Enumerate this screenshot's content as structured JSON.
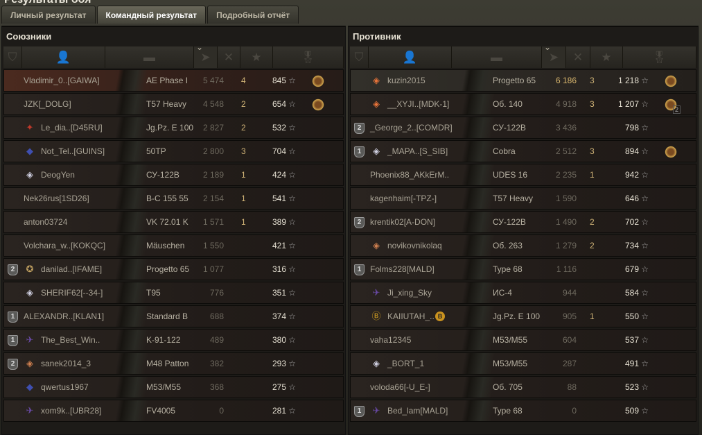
{
  "window": {
    "title": "Результаты боя"
  },
  "tabs": [
    {
      "label": "Личный результат",
      "active": false
    },
    {
      "label": "Командный результат",
      "active": true
    },
    {
      "label": "Подробный отчёт",
      "active": false
    }
  ],
  "columns": {
    "icons": [
      "platoon-icon",
      "player-icon",
      "tank-icon",
      "damage-icon",
      "kills-icon",
      "xp-star-icon",
      "medal-icon"
    ],
    "sorted": "damage"
  },
  "colors": {
    "player_row": "#4b2a1f",
    "gold_number": "#d0b477",
    "panel": "#1d1b18"
  },
  "allies": {
    "title": "Союзники",
    "rows": [
      {
        "name": "Vladimir_0..[GAIWA]",
        "badge": "",
        "platoon": "",
        "tank": "AE Phase I",
        "damage": "5 474",
        "kills": "4",
        "xp": "845",
        "medal": true,
        "me": true
      },
      {
        "name": "JZK[_DOLG]",
        "badge": "",
        "platoon": "",
        "tank": "T57 Heavy",
        "damage": "4 548",
        "kills": "2",
        "xp": "654",
        "medal": true
      },
      {
        "name": "Le_dia..[D45RU]",
        "badge": "ribbon-red",
        "platoon": "",
        "tank": "Jg.Pz. E 100",
        "damage": "2 827",
        "kills": "2",
        "xp": "532"
      },
      {
        "name": "Not_Tel..[GUINS]",
        "badge": "ribbon-blue",
        "platoon": "",
        "tank": "50TP",
        "damage": "2 800",
        "kills": "3",
        "xp": "704"
      },
      {
        "name": "DeogYen",
        "badge": "diamond-silver",
        "platoon": "",
        "tank": "СУ-122В",
        "damage": "2 189",
        "kills": "1",
        "xp": "424"
      },
      {
        "name": "Nek26rus[1SD26]",
        "badge": "",
        "platoon": "",
        "tank": "B-C 155 55",
        "damage": "2 154",
        "kills": "1",
        "xp": "541"
      },
      {
        "name": "anton03724",
        "badge": "",
        "platoon": "",
        "tank": "VK 72.01 K",
        "damage": "1 571",
        "kills": "1",
        "xp": "389"
      },
      {
        "name": "Volchara_w..[KOKQC]",
        "badge": "",
        "platoon": "",
        "tank": "Mäuschen",
        "damage": "1 550",
        "kills": "",
        "xp": "421"
      },
      {
        "name": "danilad..[IFAME]",
        "badge": "medal-round",
        "platoon": "2",
        "tank": "Progetto 65",
        "damage": "1 077",
        "kills": "",
        "xp": "316"
      },
      {
        "name": "SHERIF62[--34-]",
        "badge": "diamond-silver",
        "platoon": "",
        "tank": "T95",
        "damage": "776",
        "kills": "",
        "xp": "351"
      },
      {
        "name": "ALEXANDR..[KLAN1]",
        "badge": "",
        "platoon": "1",
        "tank": "Standard B",
        "damage": "688",
        "kills": "",
        "xp": "374"
      },
      {
        "name": "The_Best_Win..",
        "badge": "ribbon-purple",
        "platoon": "1",
        "tank": "K-91-122",
        "damage": "489",
        "kills": "",
        "xp": "380"
      },
      {
        "name": "sanek2014_3",
        "badge": "diamond-bronze",
        "platoon": "2",
        "tank": "M48 Patton",
        "damage": "382",
        "kills": "",
        "xp": "293"
      },
      {
        "name": "qwertus1967",
        "badge": "ribbon-blue",
        "platoon": "",
        "tank": "M53/M55",
        "damage": "368",
        "kills": "",
        "xp": "275"
      },
      {
        "name": "xom9k..[UBR28]",
        "badge": "ribbon-purple",
        "platoon": "",
        "tank": "FV4005",
        "damage": "0",
        "kills": "",
        "xp": "281"
      }
    ]
  },
  "enemies": {
    "title": "Противник",
    "rows": [
      {
        "name": "kuzin2015",
        "badge": "diamond-orange",
        "platoon": "",
        "tank": "Progetto 65",
        "damage": "6 186",
        "kills": "3",
        "xp": "1 218",
        "medal": true,
        "gold": true,
        "hl": true
      },
      {
        "name": "__XYJI..[MDK-1]",
        "badge": "diamond-orange",
        "platoon": "",
        "tank": "Об. 140",
        "damage": "4 918",
        "kills": "3",
        "xp": "1 207",
        "medal": true,
        "medal_count": "2"
      },
      {
        "name": "_George_2..[COMDR]",
        "badge": "",
        "platoon": "2",
        "tank": "СУ-122В",
        "damage": "3 436",
        "kills": "",
        "xp": "798"
      },
      {
        "name": "_MAPA..[S_SIB]",
        "badge": "diamond-silver",
        "platoon": "1",
        "tank": "Cobra",
        "damage": "2 512",
        "kills": "3",
        "xp": "894",
        "medal": true
      },
      {
        "name": "Phoenix88_AKkErM..",
        "badge": "",
        "platoon": "",
        "tank": "UDES 16",
        "damage": "2 235",
        "kills": "1",
        "xp": "942"
      },
      {
        "name": "kagenhaim[-TPZ-]",
        "badge": "",
        "platoon": "",
        "tank": "T57 Heavy",
        "damage": "1 590",
        "kills": "",
        "xp": "646"
      },
      {
        "name": "krentik02[A-DON]",
        "badge": "",
        "platoon": "2",
        "tank": "СУ-122В",
        "damage": "1 490",
        "kills": "2",
        "xp": "702"
      },
      {
        "name": "novikovnikolaq",
        "badge": "diamond-bronze",
        "platoon": "",
        "tank": "Об. 263",
        "damage": "1 279",
        "kills": "2",
        "xp": "734"
      },
      {
        "name": "Folms228[MALD]",
        "badge": "",
        "platoon": "1",
        "tank": "Type 68",
        "damage": "1 116",
        "kills": "",
        "xp": "679"
      },
      {
        "name": "Ji_xing_Sky",
        "badge": "ribbon-purple",
        "platoon": "",
        "tank": "ИС-4",
        "damage": "944",
        "kills": "",
        "xp": "584"
      },
      {
        "name": "KAIIUTAH_..",
        "badge": "b-badge",
        "platoon": "",
        "tank": "Jg.Pz. E 100",
        "damage": "905",
        "kills": "1",
        "xp": "550",
        "extra_badge": "B"
      },
      {
        "name": "vaha12345",
        "badge": "",
        "platoon": "",
        "tank": "M53/M55",
        "damage": "604",
        "kills": "",
        "xp": "537"
      },
      {
        "name": "_BORT_1",
        "badge": "diamond-silver",
        "platoon": "",
        "tank": "M53/M55",
        "damage": "287",
        "kills": "",
        "xp": "491"
      },
      {
        "name": "voloda66[-U_E-]",
        "badge": "",
        "platoon": "",
        "tank": "Об. 705",
        "damage": "88",
        "kills": "",
        "xp": "523"
      },
      {
        "name": "Bed_lam[MALD]",
        "badge": "ribbon-purple",
        "platoon": "1",
        "tank": "Type 68",
        "damage": "0",
        "kills": "",
        "xp": "509"
      }
    ]
  }
}
